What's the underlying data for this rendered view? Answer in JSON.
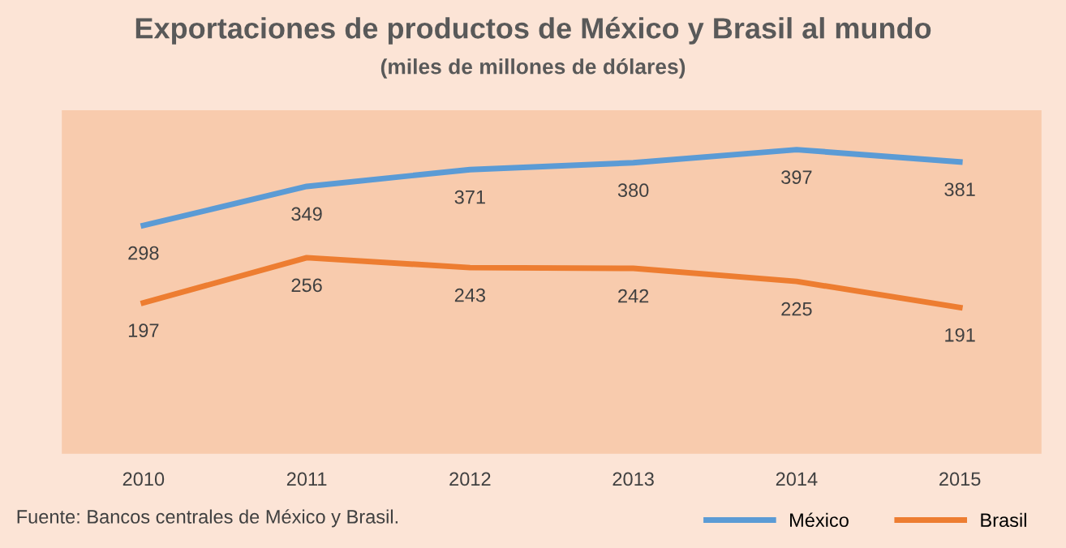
{
  "chart_data": {
    "type": "line",
    "title": "Exportaciones de productos de México y Brasil al mundo",
    "subtitle": "(miles de millones de dólares)",
    "categories": [
      "2010",
      "2011",
      "2012",
      "2013",
      "2014",
      "2015"
    ],
    "series": [
      {
        "name": "México",
        "color": "#5b9bd5",
        "values": [
          298,
          349,
          371,
          380,
          397,
          381
        ]
      },
      {
        "name": "Brasil",
        "color": "#ed7d31",
        "values": [
          197,
          256,
          243,
          242,
          225,
          191
        ]
      }
    ],
    "data_labels": true,
    "grid": false,
    "legend": "bottom right",
    "marker": "none",
    "line_style": "solid",
    "tick_labels": "x",
    "annotations": [
      "Fuente: Bancos centrales de México y Brasil."
    ]
  }
}
